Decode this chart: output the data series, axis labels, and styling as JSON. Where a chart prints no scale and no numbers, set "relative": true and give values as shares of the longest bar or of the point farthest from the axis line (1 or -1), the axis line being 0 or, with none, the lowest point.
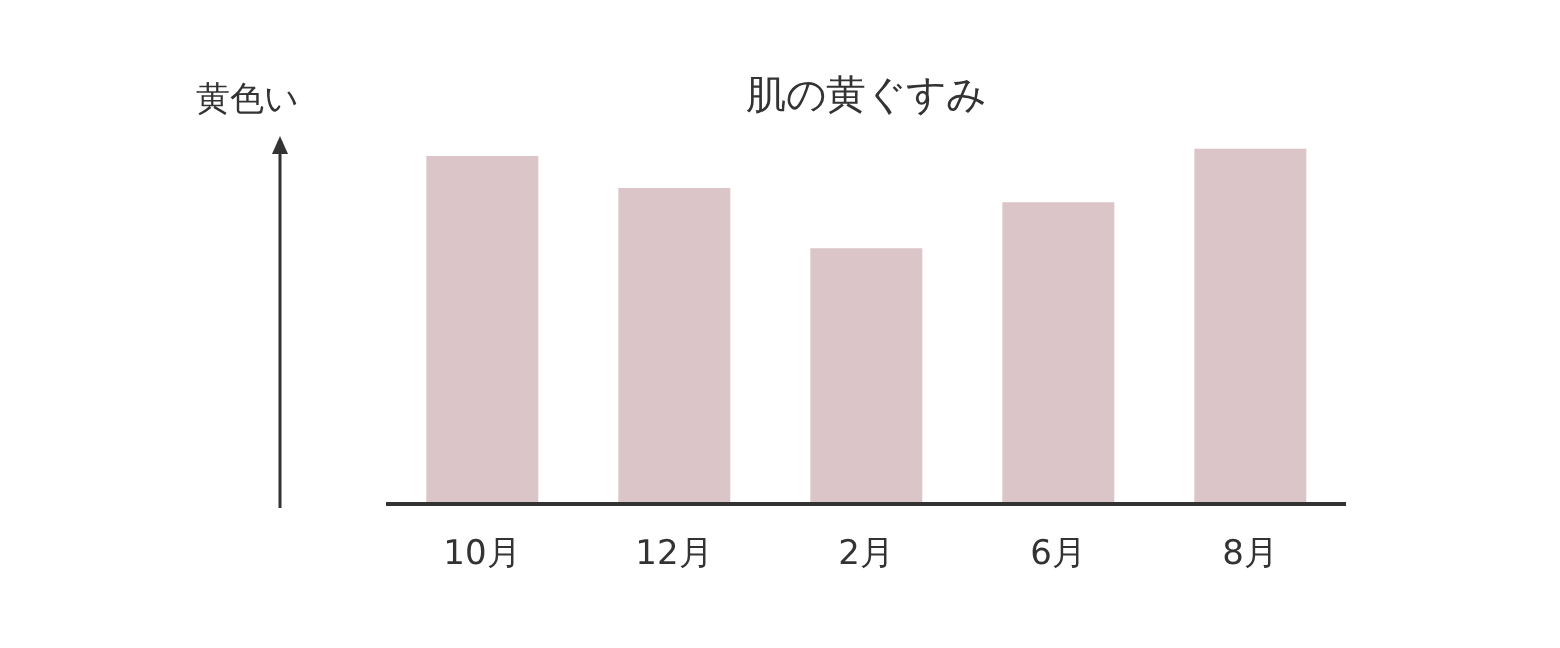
{
  "chart_data": {
    "type": "bar",
    "title": "肌の黄ぐすみ",
    "ylabel": "黄色い",
    "categories": [
      "10月",
      "12月",
      "2月",
      "6月",
      "8月"
    ],
    "relative": true,
    "series": [
      {
        "color": "#dbc5c8",
        "values": [
          0.98,
          0.89,
          0.72,
          0.85,
          1
        ]
      }
    ],
    "grid": false,
    "legend": false
  }
}
